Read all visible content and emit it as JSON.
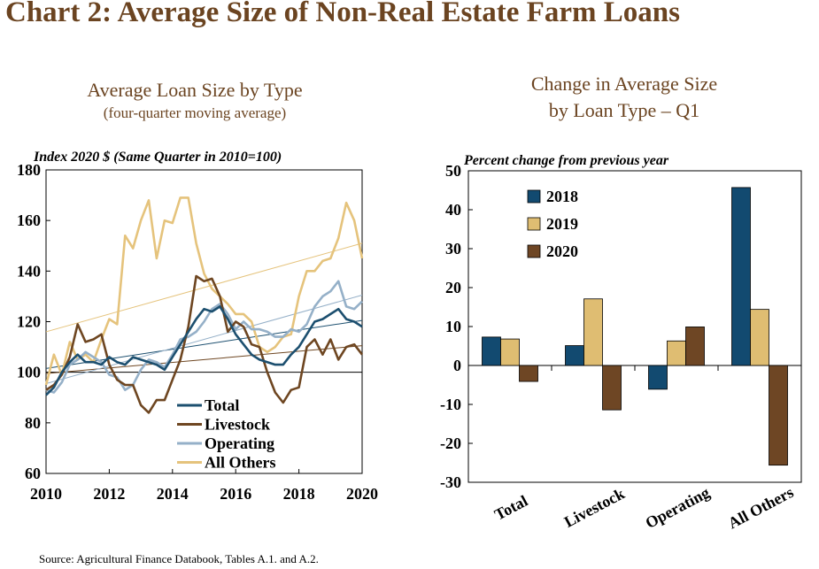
{
  "title": "Chart 2: Average Size of Non-Real Estate Farm Loans",
  "source": "Source: Agricultural Finance Databook, Tables A.1. and A.2.",
  "colors": {
    "title": "#6b4421",
    "total": "#1c4f6f",
    "livestock": "#6e4621",
    "operating": "#95b0c8",
    "all_others": "#e5c37c",
    "y2018": "#124a70",
    "y2019": "#dfbd72",
    "y2020": "#6e4624"
  },
  "chart_data": [
    {
      "type": "line",
      "title": "Average Loan Size by Type",
      "subtitle": "(four-quarter moving average)",
      "ylabel": "Index 2020 $ (Same Quarter in 2010=100)",
      "ylim": [
        60,
        180
      ],
      "yticks": [
        "60",
        "80",
        "100",
        "120",
        "140",
        "160",
        "180"
      ],
      "xlim": [
        2010,
        2020
      ],
      "xticks": [
        "2010",
        "2012",
        "2014",
        "2016",
        "2018",
        "2020"
      ],
      "legend": "bottom-left",
      "reference_line": 100,
      "x": [
        2010,
        2010.25,
        2010.5,
        2010.75,
        2011,
        2011.25,
        2011.5,
        2011.75,
        2012,
        2012.25,
        2012.5,
        2012.75,
        2013,
        2013.25,
        2013.5,
        2013.75,
        2014,
        2014.25,
        2014.5,
        2014.75,
        2015,
        2015.25,
        2015.5,
        2015.75,
        2016,
        2016.25,
        2016.5,
        2016.75,
        2017,
        2017.25,
        2017.5,
        2017.75,
        2018,
        2018.25,
        2018.5,
        2018.75,
        2019,
        2019.25,
        2019.5,
        2019.75,
        2020
      ],
      "series": [
        {
          "name": "Total",
          "color": "#1c4f6f",
          "values": [
            91,
            94,
            100,
            104,
            107,
            104,
            104,
            103,
            106,
            104,
            103,
            106,
            105,
            104,
            103,
            101,
            106,
            111,
            116,
            121,
            125,
            124,
            126,
            121,
            115,
            111,
            107,
            105,
            104,
            103,
            103,
            107,
            110,
            115,
            120,
            121,
            123,
            125,
            121,
            120,
            118
          ],
          "trend": [
            101.5,
            120.5
          ]
        },
        {
          "name": "Livestock",
          "color": "#6e4621",
          "values": [
            93,
            95,
            99,
            106,
            119,
            112,
            113,
            115,
            103,
            97,
            95,
            95,
            87,
            84,
            89,
            89,
            97,
            105,
            118,
            138,
            136,
            137,
            130,
            116,
            120,
            118,
            111,
            110,
            100,
            92,
            88,
            93,
            94,
            110,
            113,
            107,
            113,
            105,
            110,
            111,
            107
          ],
          "trend": [
            99.5,
            110.5
          ]
        },
        {
          "name": "Operating",
          "color": "#95b0c8",
          "values": [
            93,
            92,
            96,
            103,
            105,
            108,
            106,
            104,
            99,
            98,
            93,
            95,
            101,
            105,
            104,
            102,
            107,
            113,
            114,
            116,
            120,
            125,
            127,
            123,
            117,
            120,
            117,
            117,
            116,
            114,
            114,
            117,
            116,
            119,
            126,
            130,
            132,
            136,
            126,
            125,
            128
          ],
          "trend": [
            95.5,
            130.5
          ]
        },
        {
          "name": "All Others",
          "color": "#e5c37c",
          "values": [
            95,
            107,
            99,
            112,
            105,
            107,
            104,
            113,
            121,
            119,
            154,
            149,
            160,
            168,
            145,
            160,
            159,
            169,
            169,
            151,
            139,
            133,
            130,
            127,
            123,
            123,
            120,
            110,
            108,
            110,
            114,
            115,
            130,
            140,
            140,
            144,
            145,
            153,
            167,
            160,
            145
          ],
          "trend": [
            116,
            151
          ]
        }
      ]
    },
    {
      "type": "bar",
      "title": "Change in Average Size by Loan Type – Q1",
      "title_lines": [
        "Change in Average Size",
        "by Loan Type – Q1"
      ],
      "ylabel": "Percent change from previous year",
      "ylim": [
        -30,
        50
      ],
      "yticks": [
        "50",
        "40",
        "30",
        "20",
        "10",
        "0",
        "-10",
        "-20",
        "-30"
      ],
      "categories": [
        "Total",
        "Livestock",
        "Operating",
        "All Others"
      ],
      "legend": "top-left",
      "series": [
        {
          "name": "2018",
          "color": "#124a70",
          "values": [
            7.3,
            5.1,
            -6.1,
            45.7
          ]
        },
        {
          "name": "2019",
          "color": "#dfbd72",
          "values": [
            6.8,
            17.1,
            6.3,
            14.4
          ]
        },
        {
          "name": "2020",
          "color": "#6e4624",
          "values": [
            -4.1,
            -11.4,
            9.9,
            -25.6
          ]
        }
      ]
    }
  ]
}
